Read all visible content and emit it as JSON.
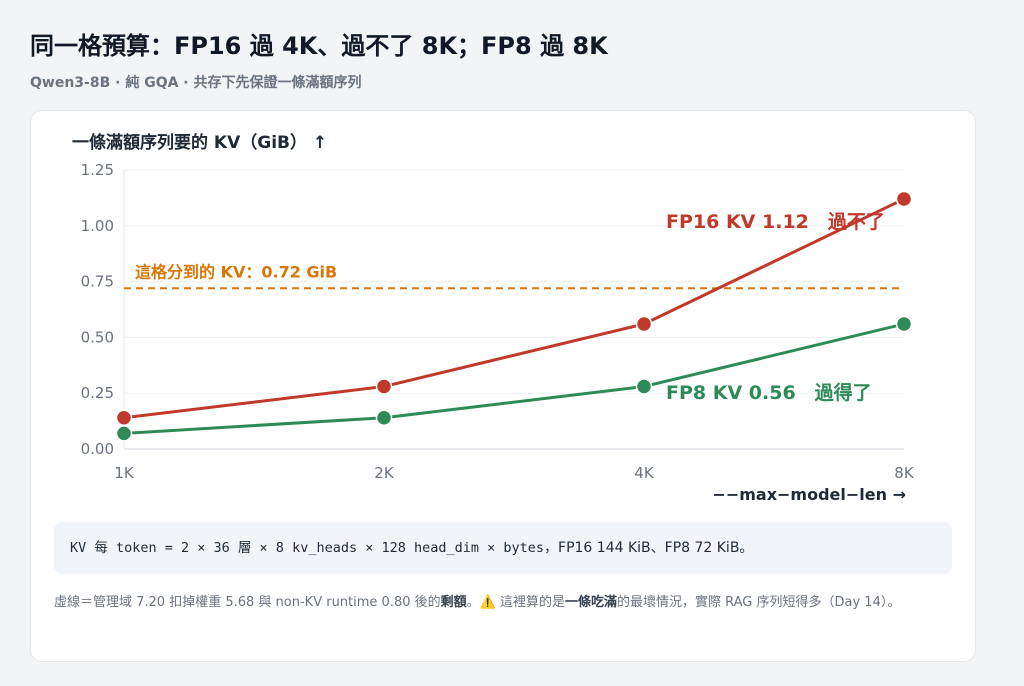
{
  "title": "同一格預算：FP16 過 4K、過不了 8K；FP8 過 8K",
  "subtitle": "Qwen3-8B · 純 GQA · 共存下先保證一條滿額序列",
  "chart_data": {
    "type": "line",
    "ylabel": "一條滿額序列要的 KV（GiB） ↑",
    "xlabel": "−−max−model−len →",
    "categories": [
      "1K",
      "2K",
      "4K",
      "8K"
    ],
    "ylim": [
      0,
      1.25
    ],
    "yticks": [
      "0.00",
      "0.25",
      "0.50",
      "0.75",
      "1.00",
      "1.25"
    ],
    "grid": "horizontal",
    "series": [
      {
        "name": "FP16",
        "values": [
          0.14,
          0.28,
          0.56,
          1.12
        ],
        "color": "#c0392b",
        "end_label": "FP16 KV 1.12　過不了"
      },
      {
        "name": "FP8",
        "values": [
          0.07,
          0.14,
          0.28,
          0.56
        ],
        "color": "#2e8b57",
        "end_label": "FP8 KV 0.56　過得了"
      }
    ],
    "threshold": {
      "value": 0.72,
      "label": "這格分到的 KV：0.72 GiB",
      "color": "#d97706"
    }
  },
  "formula": {
    "mono": "KV 每 token = 2 × 36 層 × 8 kv_heads × 128 head_dim × bytes",
    "text": "，FP16 144 KiB、FP8 72 KiB。"
  },
  "note": {
    "part1": "虛線＝管理域 7.20 扣掉權重 5.68 與 non-KV runtime 0.80 後的",
    "bold1": "剩額",
    "part2": "。⚠️ 這裡算的是",
    "bold2": "一條吃滿",
    "part3": "的最壞情況，實際 RAG 序列短得多（Day 14）。"
  }
}
